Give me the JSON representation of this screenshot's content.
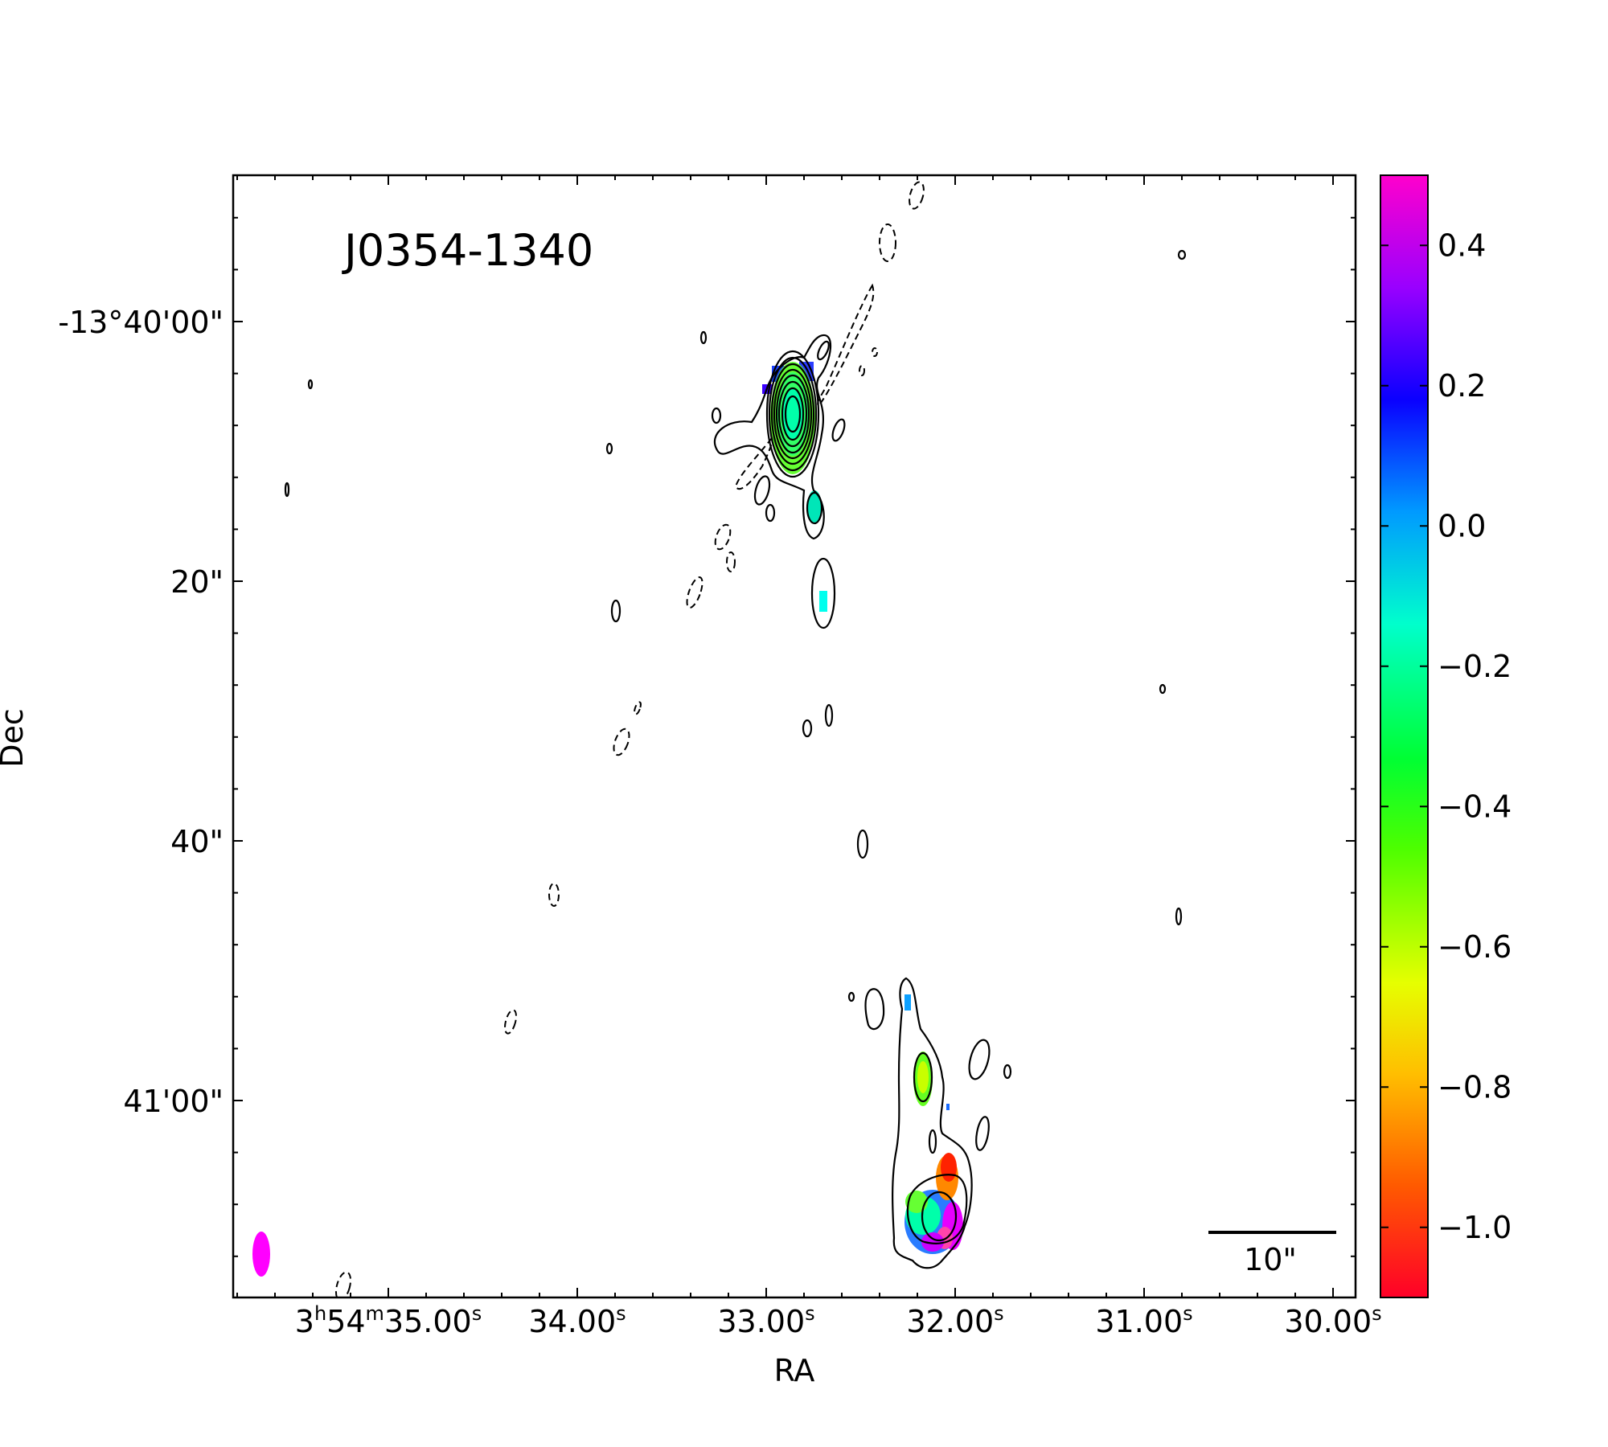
{
  "chart_data": {
    "type": "heatmap",
    "title": "J0354-1340",
    "xlabel": "RA",
    "ylabel": "Dec",
    "x_ticks": [
      {
        "h": "3",
        "m": "54",
        "s": "35.00"
      },
      {
        "s": "34.00"
      },
      {
        "s": "33.00"
      },
      {
        "s": "32.00"
      },
      {
        "s": "31.00"
      },
      {
        "s": "30.00"
      }
    ],
    "y_ticks": [
      "-13°40'00\"",
      "20\"",
      "40\"",
      "41'00\""
    ],
    "scale_bar_label": "10\"",
    "colorbar": {
      "range": [
        -1.1,
        0.5
      ],
      "ticks": [
        "0.4",
        "0.2",
        "0.0",
        "−0.2",
        "−0.4",
        "−0.6",
        "−0.8",
        "−1.0"
      ],
      "tick_values": [
        0.4,
        0.2,
        0.0,
        -0.2,
        -0.4,
        -0.6,
        -0.8,
        -1.0
      ],
      "colormap": "gist_rainbow (red at low end, magenta at high end)"
    },
    "beam_color": "#ff00ff",
    "contours": "solid positive contours and dashed negative contours of radio intensity; bright core in the north and extended lobe to the south"
  }
}
